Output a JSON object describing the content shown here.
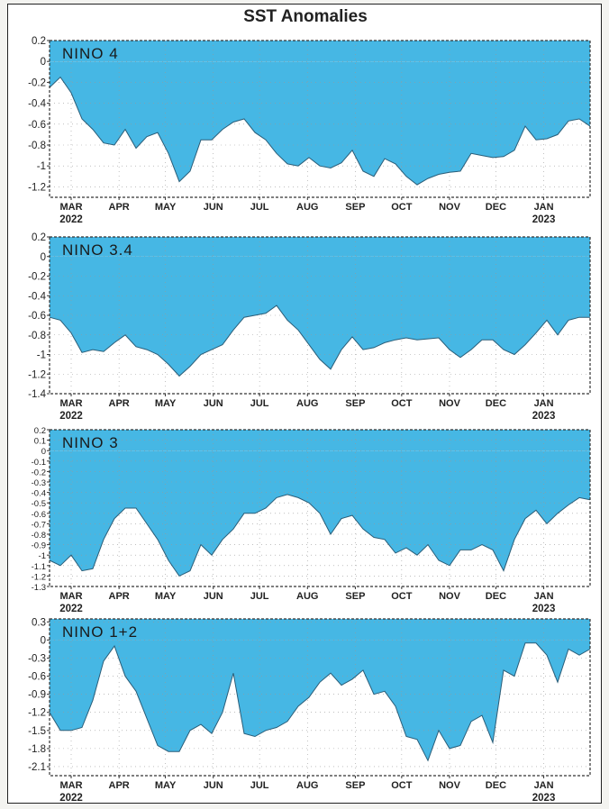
{
  "title": "SST Anomalies",
  "colors": {
    "fill": "#46b7e4",
    "axis": "#333333",
    "grid": "#999999"
  },
  "months": [
    "MAR",
    "APR",
    "MAY",
    "JUN",
    "JUL",
    "AUG",
    "SEP",
    "OCT",
    "NOV",
    "DEC",
    "JAN"
  ],
  "year_labels": [
    "2022",
    "2023"
  ],
  "chart_data": [
    {
      "type": "area",
      "label": "NINO 4",
      "ylim": [
        -1.3,
        0.2
      ],
      "yticks": [
        "0.2",
        "0",
        "-0.2",
        "-0.4",
        "-0.6",
        "-0.8",
        "-1",
        "-1.2"
      ],
      "ytick_values": [
        0.2,
        0,
        -0.2,
        -0.4,
        -0.6,
        -0.8,
        -1,
        -1.2
      ],
      "x_days": [
        0,
        7,
        14,
        21,
        28,
        35,
        42,
        49,
        56,
        63,
        70,
        77,
        84,
        91,
        98,
        105,
        112,
        119,
        126,
        133,
        140,
        147,
        154,
        161,
        168,
        175,
        182,
        189,
        196,
        203,
        210,
        217,
        224,
        231,
        238,
        245,
        252,
        259,
        266,
        273,
        280,
        287,
        294,
        301,
        308,
        315,
        322,
        329,
        336,
        343,
        350
      ],
      "values": [
        -0.25,
        -0.15,
        -0.3,
        -0.55,
        -0.65,
        -0.78,
        -0.8,
        -0.65,
        -0.83,
        -0.72,
        -0.68,
        -0.88,
        -1.15,
        -1.05,
        -0.75,
        -0.75,
        -0.65,
        -0.58,
        -0.55,
        -0.68,
        -0.75,
        -0.88,
        -0.98,
        -1.0,
        -0.92,
        -1.0,
        -1.02,
        -0.97,
        -0.85,
        -1.05,
        -1.1,
        -0.93,
        -0.98,
        -1.1,
        -1.18,
        -1.12,
        -1.08,
        -1.06,
        -1.05,
        -0.88,
        -0.9,
        -0.92,
        -0.91,
        -0.85,
        -0.62,
        -0.75,
        -0.74,
        -0.7,
        -0.57,
        -0.55,
        -0.62
      ]
    },
    {
      "type": "area",
      "label": "NINO 3.4",
      "ylim": [
        -1.4,
        0.2
      ],
      "yticks": [
        "0.2",
        "0",
        "-0.2",
        "-0.4",
        "-0.6",
        "-0.8",
        "-1",
        "-1.2",
        "-1.4"
      ],
      "ytick_values": [
        0.2,
        0,
        -0.2,
        -0.4,
        -0.6,
        -0.8,
        -1,
        -1.2,
        -1.4
      ],
      "x_days": [
        0,
        7,
        14,
        21,
        28,
        35,
        42,
        49,
        56,
        63,
        70,
        77,
        84,
        91,
        98,
        105,
        112,
        119,
        126,
        133,
        140,
        147,
        154,
        161,
        168,
        175,
        182,
        189,
        196,
        203,
        210,
        217,
        224,
        231,
        238,
        245,
        252,
        259,
        266,
        273,
        280,
        287,
        294,
        301,
        308,
        315,
        322,
        329,
        336,
        343,
        350
      ],
      "values": [
        -0.62,
        -0.65,
        -0.78,
        -0.98,
        -0.95,
        -0.97,
        -0.88,
        -0.8,
        -0.92,
        -0.95,
        -1.0,
        -1.1,
        -1.22,
        -1.12,
        -1.0,
        -0.95,
        -0.9,
        -0.75,
        -0.62,
        -0.6,
        -0.58,
        -0.5,
        -0.65,
        -0.75,
        -0.9,
        -1.05,
        -1.15,
        -0.95,
        -0.82,
        -0.95,
        -0.93,
        -0.88,
        -0.85,
        -0.83,
        -0.85,
        -0.84,
        -0.83,
        -0.95,
        -1.03,
        -0.95,
        -0.85,
        -0.85,
        -0.95,
        -1.0,
        -0.9,
        -0.78,
        -0.65,
        -0.8,
        -0.65,
        -0.62,
        -0.62
      ]
    },
    {
      "type": "area",
      "label": "NINO 3",
      "ylim": [
        -1.3,
        0.2
      ],
      "yticks": [
        "0.2",
        "0.1",
        "0",
        "-0.1",
        "-0.2",
        "-0.3",
        "-0.4",
        "-0.5",
        "-0.6",
        "-0.7",
        "-0.8",
        "-0.9",
        "-1",
        "-1.1",
        "-1.2",
        "-1.3"
      ],
      "ytick_values": [
        0.2,
        0.1,
        0,
        -0.1,
        -0.2,
        -0.3,
        -0.4,
        -0.5,
        -0.6,
        -0.7,
        -0.8,
        -0.9,
        -1,
        -1.1,
        -1.2,
        -1.3
      ],
      "x_days": [
        0,
        7,
        14,
        21,
        28,
        35,
        42,
        49,
        56,
        63,
        70,
        77,
        84,
        91,
        98,
        105,
        112,
        119,
        126,
        133,
        140,
        147,
        154,
        161,
        168,
        175,
        182,
        189,
        196,
        203,
        210,
        217,
        224,
        231,
        238,
        245,
        252,
        259,
        266,
        273,
        280,
        287,
        294,
        301,
        308,
        315,
        322,
        329,
        336,
        343,
        350
      ],
      "values": [
        -1.05,
        -1.1,
        -1.0,
        -1.15,
        -1.13,
        -0.85,
        -0.65,
        -0.55,
        -0.55,
        -0.7,
        -0.85,
        -1.05,
        -1.2,
        -1.15,
        -0.9,
        -1.0,
        -0.85,
        -0.75,
        -0.6,
        -0.6,
        -0.55,
        -0.45,
        -0.42,
        -0.45,
        -0.5,
        -0.6,
        -0.8,
        -0.65,
        -0.62,
        -0.75,
        -0.83,
        -0.85,
        -0.98,
        -0.93,
        -1.0,
        -0.9,
        -1.05,
        -1.1,
        -0.95,
        -0.95,
        -0.9,
        -0.95,
        -1.15,
        -0.85,
        -0.65,
        -0.57,
        -0.7,
        -0.6,
        -0.52,
        -0.45,
        -0.47
      ]
    },
    {
      "type": "area",
      "label": "NINO 1+2",
      "ylim": [
        -2.25,
        0.35
      ],
      "yticks": [
        "0.3",
        "0",
        "-0.3",
        "-0.6",
        "-0.9",
        "-1.2",
        "-1.5",
        "-1.8",
        "-2.1"
      ],
      "ytick_values": [
        0.3,
        0,
        -0.3,
        -0.6,
        -0.9,
        -1.2,
        -1.5,
        -1.8,
        -2.1
      ],
      "x_days": [
        0,
        7,
        14,
        21,
        28,
        35,
        42,
        49,
        56,
        63,
        70,
        77,
        84,
        91,
        98,
        105,
        112,
        119,
        126,
        133,
        140,
        147,
        154,
        161,
        168,
        175,
        182,
        189,
        196,
        203,
        210,
        217,
        224,
        231,
        238,
        245,
        252,
        259,
        266,
        273,
        280,
        287,
        294,
        301,
        308,
        315,
        322,
        329,
        336,
        343,
        350
      ],
      "values": [
        -1.2,
        -1.5,
        -1.5,
        -1.45,
        -1.0,
        -0.35,
        -0.1,
        -0.6,
        -0.85,
        -1.3,
        -1.75,
        -1.85,
        -1.85,
        -1.5,
        -1.4,
        -1.55,
        -1.2,
        -0.55,
        -1.55,
        -1.6,
        -1.5,
        -1.45,
        -1.35,
        -1.1,
        -0.95,
        -0.7,
        -0.55,
        -0.75,
        -0.65,
        -0.5,
        -0.9,
        -0.85,
        -1.1,
        -1.6,
        -1.65,
        -2.0,
        -1.5,
        -1.8,
        -1.75,
        -1.35,
        -1.25,
        -1.7,
        -0.5,
        -0.6,
        -0.05,
        -0.05,
        -0.25,
        -0.7,
        -0.15,
        -0.25,
        -0.15
      ]
    }
  ]
}
